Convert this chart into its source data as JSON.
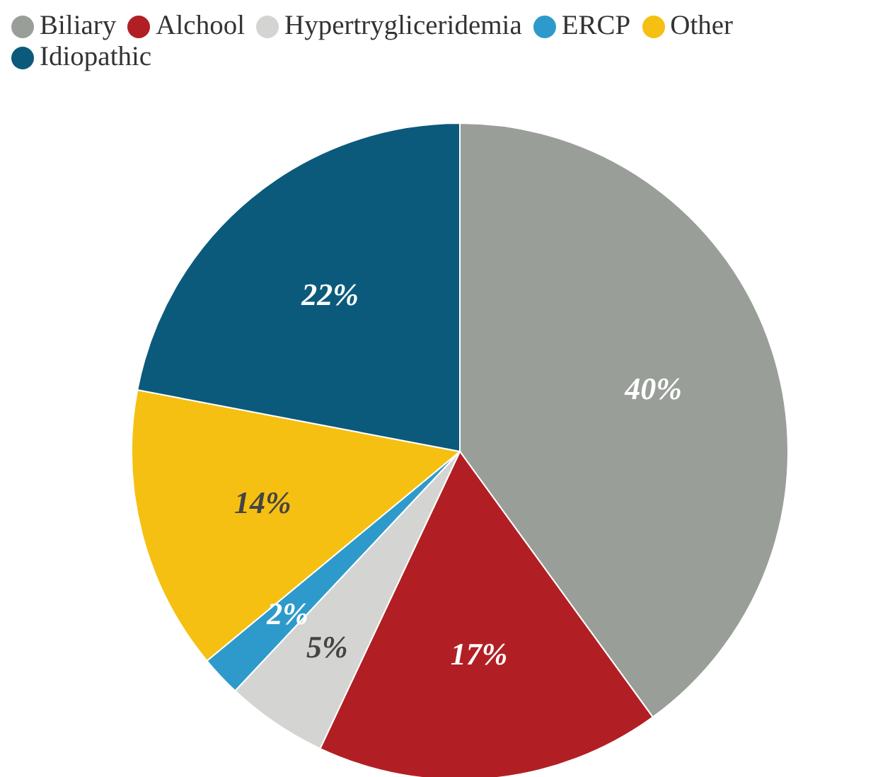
{
  "chart_data": {
    "type": "pie",
    "categories": [
      "Biliary",
      "Alchool",
      "Hypertrygliceridemia",
      "ERCP",
      "Other",
      "Idiopathic"
    ],
    "values": [
      40,
      17,
      5,
      2,
      14,
      22
    ],
    "value_labels": [
      "40%",
      "17%",
      "5%",
      "2%",
      "14%",
      "22%"
    ],
    "colors": [
      "#9a9e98",
      "#b11f24",
      "#d4d4d2",
      "#2e9acb",
      "#f5c012",
      "#0b5a7c"
    ],
    "legend": "top left"
  }
}
